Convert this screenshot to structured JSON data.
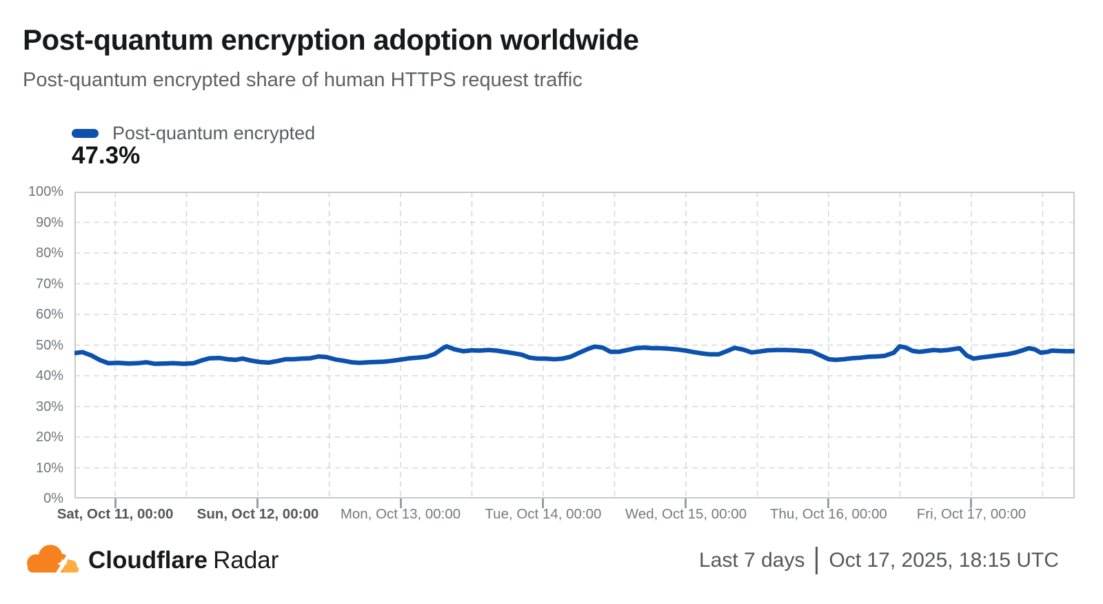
{
  "header": {
    "title": "Post-quantum encryption adoption worldwide",
    "subtitle": "Post-quantum encrypted share of human HTTPS request traffic"
  },
  "legend": {
    "label": "Post-quantum encrypted",
    "value": "47.3%",
    "color": "#0b51ad"
  },
  "footer": {
    "brand_bold": "Cloudflare",
    "brand_regular": "Radar",
    "range_label": "Last 7 days",
    "timestamp": "Oct 17, 2025, 18:15 UTC",
    "logo_orange": "#F6821F",
    "logo_light_orange": "#FBAD41"
  },
  "chart_data": {
    "type": "line",
    "title": "Post-quantum encryption adoption worldwide",
    "ylabel": "",
    "xlabel": "",
    "ylim": [
      0,
      100
    ],
    "y_ticks": [
      0,
      10,
      20,
      30,
      40,
      50,
      60,
      70,
      80,
      90,
      100
    ],
    "y_tick_suffix": "%",
    "grid": "dashed horizontal every 10%, dashed vertical every 12h",
    "legend_position": "top-left above plot",
    "x_window": "Oct 10 ~17:00 UTC to Oct 17 ~17:30 UTC (last 7 days)",
    "x_ticks": [
      {
        "label": "Sat, Oct 11, 00:00",
        "pos_pct": 4.07,
        "bold": true
      },
      {
        "label": "Sun, Oct 12, 00:00",
        "pos_pct": 18.33,
        "bold": true
      },
      {
        "label": "Mon, Oct 13, 00:00",
        "pos_pct": 32.6,
        "bold": false
      },
      {
        "label": "Tue, Oct 14, 00:00",
        "pos_pct": 46.86,
        "bold": false
      },
      {
        "label": "Wed, Oct 15, 00:00",
        "pos_pct": 61.13,
        "bold": false
      },
      {
        "label": "Thu, Oct 16, 00:00",
        "pos_pct": 75.39,
        "bold": false
      },
      {
        "label": "Fri, Oct 17, 00:00",
        "pos_pct": 89.66,
        "bold": false
      }
    ],
    "x_gridlines_pct": [
      4.07,
      11.2,
      18.33,
      25.47,
      32.6,
      39.73,
      46.86,
      54.0,
      61.13,
      68.26,
      75.39,
      82.53,
      89.66,
      96.79
    ],
    "series": [
      {
        "name": "Post-quantum encrypted",
        "color": "#0b51ad",
        "current_value_pct": 47.3,
        "points": [
          [
            0,
            47.4
          ],
          [
            0.8,
            47.7
          ],
          [
            1.7,
            46.6
          ],
          [
            2.5,
            45.2
          ],
          [
            3.4,
            44.1
          ],
          [
            4.4,
            44.2
          ],
          [
            5.4,
            44.0
          ],
          [
            6.3,
            44.1
          ],
          [
            7.2,
            44.4
          ],
          [
            8.0,
            43.9
          ],
          [
            9.0,
            44.0
          ],
          [
            9.9,
            44.1
          ],
          [
            10.9,
            43.9
          ],
          [
            11.9,
            44.1
          ],
          [
            12.7,
            45.0
          ],
          [
            13.5,
            45.7
          ],
          [
            14.5,
            45.8
          ],
          [
            15.3,
            45.4
          ],
          [
            16.1,
            45.2
          ],
          [
            16.8,
            45.6
          ],
          [
            17.6,
            45.0
          ],
          [
            18.5,
            44.5
          ],
          [
            19.4,
            44.3
          ],
          [
            20.3,
            44.8
          ],
          [
            21.1,
            45.4
          ],
          [
            21.9,
            45.4
          ],
          [
            22.7,
            45.6
          ],
          [
            23.6,
            45.7
          ],
          [
            24.4,
            46.3
          ],
          [
            25.2,
            46.1
          ],
          [
            26.1,
            45.3
          ],
          [
            26.9,
            44.9
          ],
          [
            27.7,
            44.4
          ],
          [
            28.5,
            44.2
          ],
          [
            29.4,
            44.4
          ],
          [
            30.2,
            44.5
          ],
          [
            31.0,
            44.6
          ],
          [
            31.8,
            44.9
          ],
          [
            32.7,
            45.3
          ],
          [
            33.5,
            45.7
          ],
          [
            34.3,
            45.9
          ],
          [
            35.2,
            46.2
          ],
          [
            36.0,
            47.1
          ],
          [
            36.8,
            48.9
          ],
          [
            37.2,
            49.6
          ],
          [
            38.0,
            48.6
          ],
          [
            38.9,
            48.0
          ],
          [
            39.7,
            48.3
          ],
          [
            40.5,
            48.2
          ],
          [
            41.4,
            48.4
          ],
          [
            42.2,
            48.2
          ],
          [
            43.0,
            47.8
          ],
          [
            43.8,
            47.4
          ],
          [
            44.7,
            46.9
          ],
          [
            45.5,
            45.9
          ],
          [
            46.3,
            45.6
          ],
          [
            47.1,
            45.6
          ],
          [
            48.0,
            45.4
          ],
          [
            48.8,
            45.6
          ],
          [
            49.6,
            46.2
          ],
          [
            50.4,
            47.4
          ],
          [
            51.3,
            48.7
          ],
          [
            52.0,
            49.5
          ],
          [
            52.8,
            49.2
          ],
          [
            53.6,
            47.8
          ],
          [
            54.4,
            47.8
          ],
          [
            55.3,
            48.4
          ],
          [
            56.1,
            49.0
          ],
          [
            56.9,
            49.2
          ],
          [
            57.8,
            49.0
          ],
          [
            58.6,
            49.0
          ],
          [
            59.4,
            48.8
          ],
          [
            60.2,
            48.6
          ],
          [
            61.1,
            48.2
          ],
          [
            61.9,
            47.7
          ],
          [
            62.7,
            47.3
          ],
          [
            63.5,
            47.0
          ],
          [
            64.4,
            47.0
          ],
          [
            65.2,
            48.0
          ],
          [
            66.0,
            49.1
          ],
          [
            66.9,
            48.5
          ],
          [
            67.7,
            47.6
          ],
          [
            68.5,
            47.9
          ],
          [
            69.3,
            48.3
          ],
          [
            70.2,
            48.4
          ],
          [
            71.1,
            48.4
          ],
          [
            72.1,
            48.3
          ],
          [
            72.9,
            48.1
          ],
          [
            73.7,
            47.9
          ],
          [
            74.6,
            46.6
          ],
          [
            75.4,
            45.4
          ],
          [
            76.1,
            45.2
          ],
          [
            76.9,
            45.4
          ],
          [
            77.7,
            45.7
          ],
          [
            78.6,
            45.9
          ],
          [
            79.4,
            46.2
          ],
          [
            80.2,
            46.3
          ],
          [
            81.0,
            46.5
          ],
          [
            81.9,
            47.5
          ],
          [
            82.5,
            49.6
          ],
          [
            83.1,
            49.2
          ],
          [
            83.8,
            48.1
          ],
          [
            84.5,
            47.8
          ],
          [
            85.2,
            48.1
          ],
          [
            85.9,
            48.4
          ],
          [
            86.6,
            48.2
          ],
          [
            87.3,
            48.4
          ],
          [
            87.9,
            48.7
          ],
          [
            88.5,
            49.0
          ],
          [
            89.2,
            46.6
          ],
          [
            89.9,
            45.6
          ],
          [
            90.7,
            46.0
          ],
          [
            91.5,
            46.3
          ],
          [
            92.4,
            46.7
          ],
          [
            93.2,
            47.0
          ],
          [
            94.0,
            47.5
          ],
          [
            94.7,
            48.2
          ],
          [
            95.4,
            49.0
          ],
          [
            96.0,
            48.6
          ],
          [
            96.6,
            47.5
          ],
          [
            97.3,
            47.8
          ],
          [
            97.7,
            48.2
          ],
          [
            98.4,
            48.1
          ],
          [
            99.2,
            48.0
          ],
          [
            100,
            48.0
          ]
        ]
      }
    ]
  }
}
